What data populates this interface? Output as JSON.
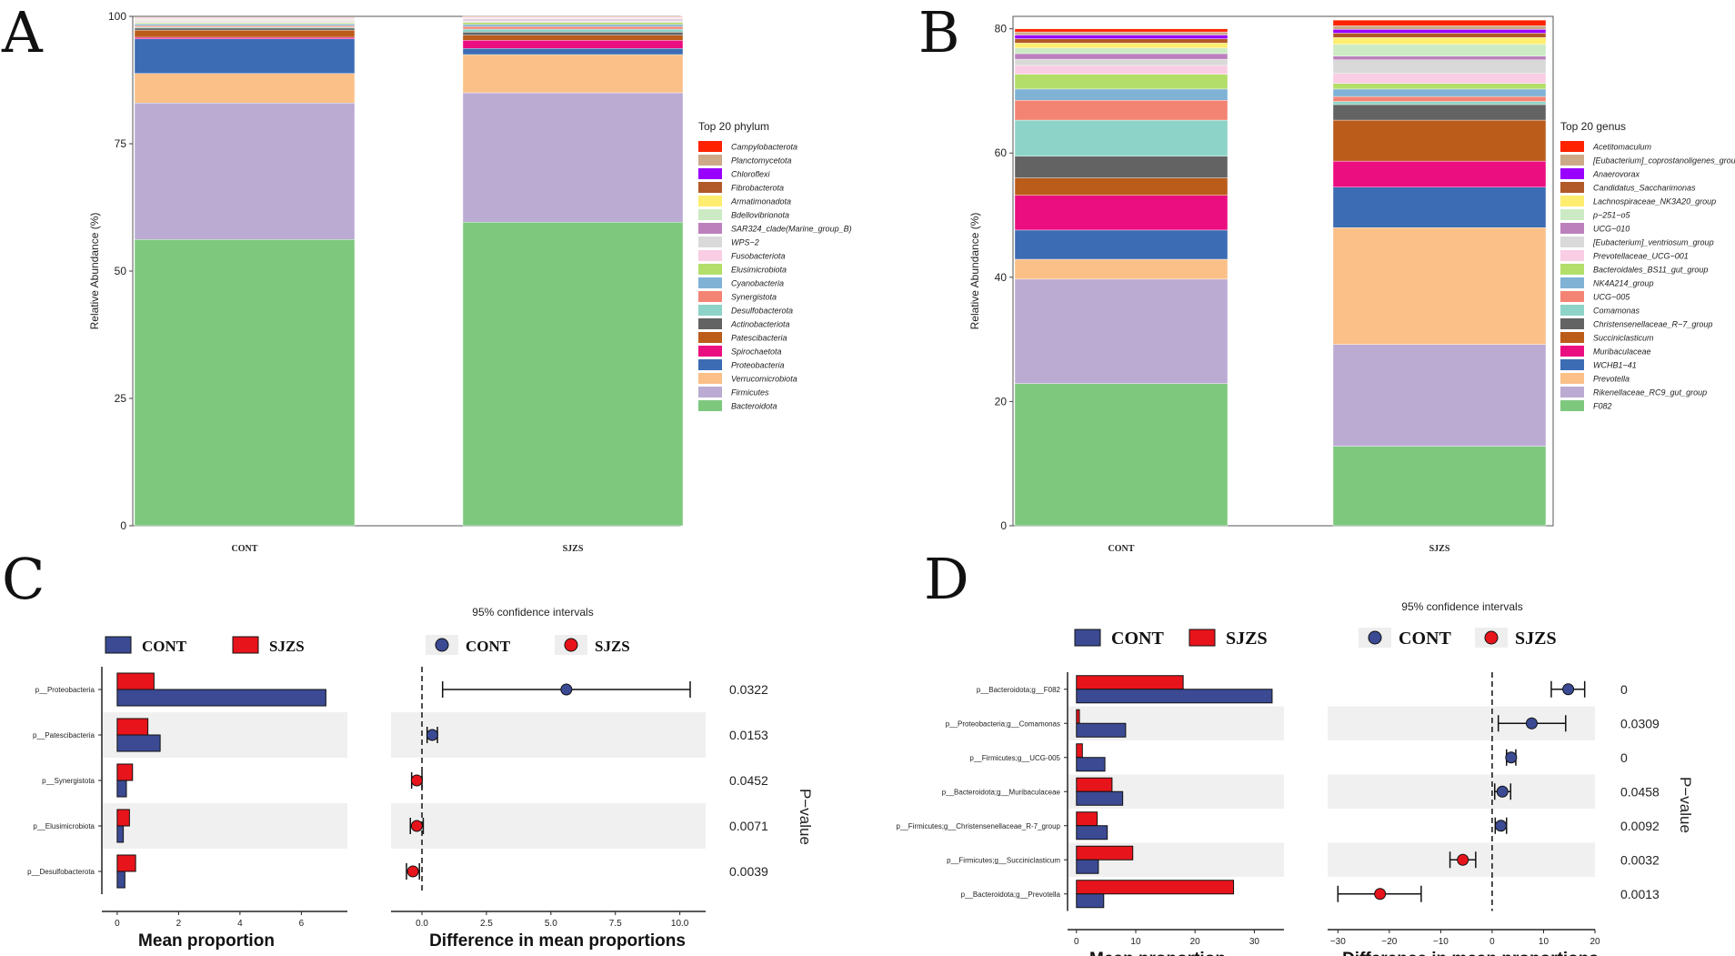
{
  "colors": {
    "cont": "#3B4A93",
    "sjzs": "#E8141B",
    "stripe": "#F0F0F0"
  },
  "chart_data": [
    {
      "panel": "A",
      "type": "bar",
      "subtype": "stacked",
      "ylabel": "Relative Abundance (%)",
      "ylim": [
        0,
        100
      ],
      "yticks": [
        0,
        25,
        50,
        75,
        100
      ],
      "categories": [
        "CONT",
        "SJZS"
      ],
      "legend_title": "Top 20 phylum",
      "legend_items": [
        "Campylobacterota",
        "Planctomycetota",
        "Chloroflexi",
        "Fibrobacterota",
        "Armatimonadota",
        "Bdellovibrionota",
        "SAR324_clade(Marine_group_B)",
        "WPS-2",
        "Fusobacteriota",
        "Elusimicrobiota",
        "Cyanobacteria",
        "Synergistota",
        "Desulfobacterota",
        "Actinobacteriota",
        "Patescibacteria",
        "Spirochaetota",
        "Proteobacteria",
        "Verrucomicrobiota",
        "Firmicutes",
        "Bacteroidota"
      ],
      "series": [
        {
          "name": "Bacteroidota",
          "color": "#7EC87E",
          "values": [
            56.2,
            59.6
          ]
        },
        {
          "name": "Firmicutes",
          "color": "#BBABD3",
          "values": [
            26.8,
            25.4
          ]
        },
        {
          "name": "Verrucomicrobiota",
          "color": "#FAC088",
          "values": [
            5.8,
            7.5
          ]
        },
        {
          "name": "Proteobacteria",
          "color": "#3C6CB4",
          "values": [
            6.8,
            1.2
          ]
        },
        {
          "name": "Spirochaetota",
          "color": "#EB0E81",
          "values": [
            0.3,
            1.6
          ]
        },
        {
          "name": "Patescibacteria",
          "color": "#BB5C1A",
          "values": [
            1.4,
            1.0
          ]
        },
        {
          "name": "Actinobacteriota",
          "color": "#636363",
          "values": [
            0.4,
            0.6
          ]
        },
        {
          "name": "Desulfobacterota",
          "color": "#8DD3C7",
          "values": [
            0.2,
            0.6
          ]
        },
        {
          "name": "Synergistota",
          "color": "#F38473",
          "values": [
            0.3,
            0.5
          ]
        },
        {
          "name": "Cyanobacteria",
          "color": "#7FB2D5",
          "values": [
            0.3,
            0.4
          ]
        },
        {
          "name": "Elusimicrobiota",
          "color": "#B3DE69",
          "values": [
            0.2,
            0.4
          ]
        },
        {
          "name": "Fusobacteriota",
          "color": "#F9CDE4",
          "values": [
            0.2,
            0.2
          ]
        },
        {
          "name": "WPS-2",
          "color": "#D9D9D9",
          "values": [
            0.2,
            0.2
          ]
        },
        {
          "name": "SAR324_clade(Marine_group_B)",
          "color": "#BC80BD",
          "values": [
            0.1,
            0.2
          ]
        },
        {
          "name": "Bdellovibrionota",
          "color": "#CCEBC5",
          "values": [
            0.1,
            0.1
          ]
        },
        {
          "name": "Armatimonadota",
          "color": "#FFED6F",
          "values": [
            0.1,
            0.1
          ]
        },
        {
          "name": "Fibrobacterota",
          "color": "#B15928",
          "values": [
            0.1,
            0.1
          ]
        },
        {
          "name": "Chloroflexi",
          "color": "#9900FF",
          "values": [
            0.1,
            0.1
          ]
        },
        {
          "name": "Planctomycetota",
          "color": "#CCAA88",
          "values": [
            0.1,
            0.1
          ]
        },
        {
          "name": "Campylobacterota",
          "color": "#FF2200",
          "values": [
            0.1,
            0.1
          ]
        }
      ]
    },
    {
      "panel": "B",
      "type": "bar",
      "subtype": "stacked",
      "ylabel": "Relative Abundance (%)",
      "ylim": [
        0,
        82
      ],
      "yticks": [
        0,
        20,
        40,
        60,
        80
      ],
      "categories": [
        "CONT",
        "SJZS"
      ],
      "legend_title": "Top 20 genus",
      "legend_items": [
        "Acetitomaculum",
        "[Eubacterium]_coprostanoligenes_group",
        "Anaerovorax",
        "Candidatus_Saccharimonas",
        "Lachnospiraceae_NK3A20_group",
        "p-251-o5",
        "UCG-010",
        "[Eubacterium]_ventriosum_group",
        "Prevotellaceae_UCG-001",
        "Bacteroidales_BS11_gut_group",
        "NK4A214_group",
        "UCG-005",
        "Comamonas",
        "Christensenellaceae_R-7_group",
        "Succiniclasticum",
        "Muribaculaceae",
        "WCHB1-41",
        "Prevotella",
        "Rikenellaceae_RC9_gut_group",
        "F082"
      ],
      "series": [
        {
          "name": "F082",
          "color": "#7EC87E",
          "values": [
            22.9,
            12.8
          ]
        },
        {
          "name": "Rikenellaceae_RC9_gut_group",
          "color": "#BBABD3",
          "values": [
            16.8,
            16.4
          ]
        },
        {
          "name": "Prevotella",
          "color": "#FAC088",
          "values": [
            3.2,
            18.8
          ]
        },
        {
          "name": "WCHB1-41",
          "color": "#3C6CB4",
          "values": [
            4.7,
            6.5
          ]
        },
        {
          "name": "Muribaculaceae",
          "color": "#EB0E81",
          "values": [
            5.6,
            4.2
          ]
        },
        {
          "name": "Succiniclasticum",
          "color": "#BB5C1A",
          "values": [
            2.8,
            6.6
          ]
        },
        {
          "name": "Christensenellaceae_R-7_group",
          "color": "#636363",
          "values": [
            3.5,
            2.5
          ]
        },
        {
          "name": "Comamonas",
          "color": "#8DD3C7",
          "values": [
            5.8,
            0.5
          ]
        },
        {
          "name": "UCG-005",
          "color": "#F38473",
          "values": [
            3.2,
            0.8
          ]
        },
        {
          "name": "NK4A214_group",
          "color": "#7FB2D5",
          "values": [
            1.8,
            1.2
          ]
        },
        {
          "name": "Bacteroidales_BS11_gut_group",
          "color": "#B3DE69",
          "values": [
            2.4,
            0.9
          ]
        },
        {
          "name": "Prevotellaceae_UCG-001",
          "color": "#F9CDE4",
          "values": [
            1.4,
            1.6
          ]
        },
        {
          "name": "[Eubacterium]_ventriosum_group",
          "color": "#D9D9D9",
          "values": [
            1.0,
            2.2
          ]
        },
        {
          "name": "UCG-010",
          "color": "#BC80BD",
          "values": [
            0.9,
            0.6
          ]
        },
        {
          "name": "p-251-o5",
          "color": "#CCEBC5",
          "values": [
            0.9,
            1.9
          ]
        },
        {
          "name": "Lachnospiraceae_NK3A20_group",
          "color": "#FFED6F",
          "values": [
            0.8,
            1.1
          ]
        },
        {
          "name": "Candidatus_Saccharimonas",
          "color": "#B15928",
          "values": [
            0.7,
            0.7
          ]
        },
        {
          "name": "Anaerovorax",
          "color": "#9900FF",
          "values": [
            0.6,
            0.6
          ]
        },
        {
          "name": "[Eubacterium]_coprostanoligenes_group",
          "color": "#CCAA88",
          "values": [
            0.5,
            0.6
          ]
        },
        {
          "name": "Acetitomaculum",
          "color": "#FF2200",
          "values": [
            0.5,
            0.9
          ]
        }
      ]
    },
    {
      "panel": "C",
      "type": "bar",
      "subtype": "extended_error_bar",
      "ci_title": "95% confidence intervals",
      "legend_groups": [
        "CONT",
        "SJZS"
      ],
      "xlabel_left": "Mean proportion",
      "xlabel_right": "Difference in mean proportions",
      "pvalue_title": "P-value",
      "categories": [
        "p__Proteobacteria",
        "p__Patescibacteria",
        "p__Synergistota",
        "p__Elusimicrobiota",
        "p__Desulfobacterota"
      ],
      "cont_values": [
        6.8,
        1.4,
        0.3,
        0.2,
        0.25
      ],
      "sjzs_values": [
        1.2,
        1.0,
        0.5,
        0.4,
        0.6
      ],
      "left_xlim": [
        -0.5,
        7.5
      ],
      "left_xticks": [
        0,
        2,
        4,
        6
      ],
      "diff": [
        5.6,
        0.4,
        -0.2,
        -0.2,
        -0.35
      ],
      "ci_low": [
        0.8,
        0.2,
        -0.4,
        -0.45,
        -0.6
      ],
      "ci_high": [
        10.4,
        0.6,
        0.0,
        0.05,
        -0.1
      ],
      "right_xlim": [
        -1.2,
        11.0
      ],
      "right_xticks": [
        "0.0",
        "2.5",
        "5.0",
        "7.5",
        "10.0"
      ],
      "pvalues": [
        "0.0322",
        "0.0153",
        "0.0452",
        "0.0071",
        "0.0039"
      ]
    },
    {
      "panel": "D",
      "type": "bar",
      "subtype": "extended_error_bar",
      "ci_title": "95% confidence intervals",
      "legend_groups": [
        "CONT",
        "SJZS"
      ],
      "xlabel_left": "Mean proportion",
      "xlabel_right": "Difference in mean proportions",
      "pvalue_title": "P-value",
      "categories": [
        "p__Bacteroidota;g__F082",
        "p__Proteobacteria;g__Comamonas",
        "p__Firmicutes;g__UCG-005",
        "p__Bacteroidota;g__Muribaculaceae",
        "p__Firmicutes;g__Christensenellaceae_R-7_group",
        "p__Firmicutes;g__Succiniclasticum",
        "p__Bacteroidota;g__Prevotella"
      ],
      "cont_values": [
        33,
        8.3,
        4.8,
        7.8,
        5.2,
        3.7,
        4.6
      ],
      "sjzs_values": [
        18,
        0.5,
        1.0,
        6.0,
        3.5,
        9.5,
        26.5
      ],
      "left_xlim": [
        -1.5,
        35
      ],
      "left_xticks": [
        0,
        10,
        20,
        30
      ],
      "diff": [
        14.8,
        7.7,
        3.7,
        2.0,
        1.7,
        -5.7,
        -21.8
      ],
      "ci_low": [
        11.5,
        1.2,
        2.8,
        0.5,
        0.6,
        -8.2,
        -30.0
      ],
      "ci_high": [
        18.0,
        14.3,
        4.6,
        3.6,
        2.8,
        -3.2,
        -13.8
      ],
      "right_xlim": [
        -32,
        20
      ],
      "right_xticks": [
        "-30",
        "-20",
        "-10",
        "0",
        "10",
        "20"
      ],
      "pvalues": [
        "0",
        "0.0309",
        "0",
        "0.0458",
        "0.0092",
        "0.0032",
        "0.0013"
      ]
    }
  ]
}
